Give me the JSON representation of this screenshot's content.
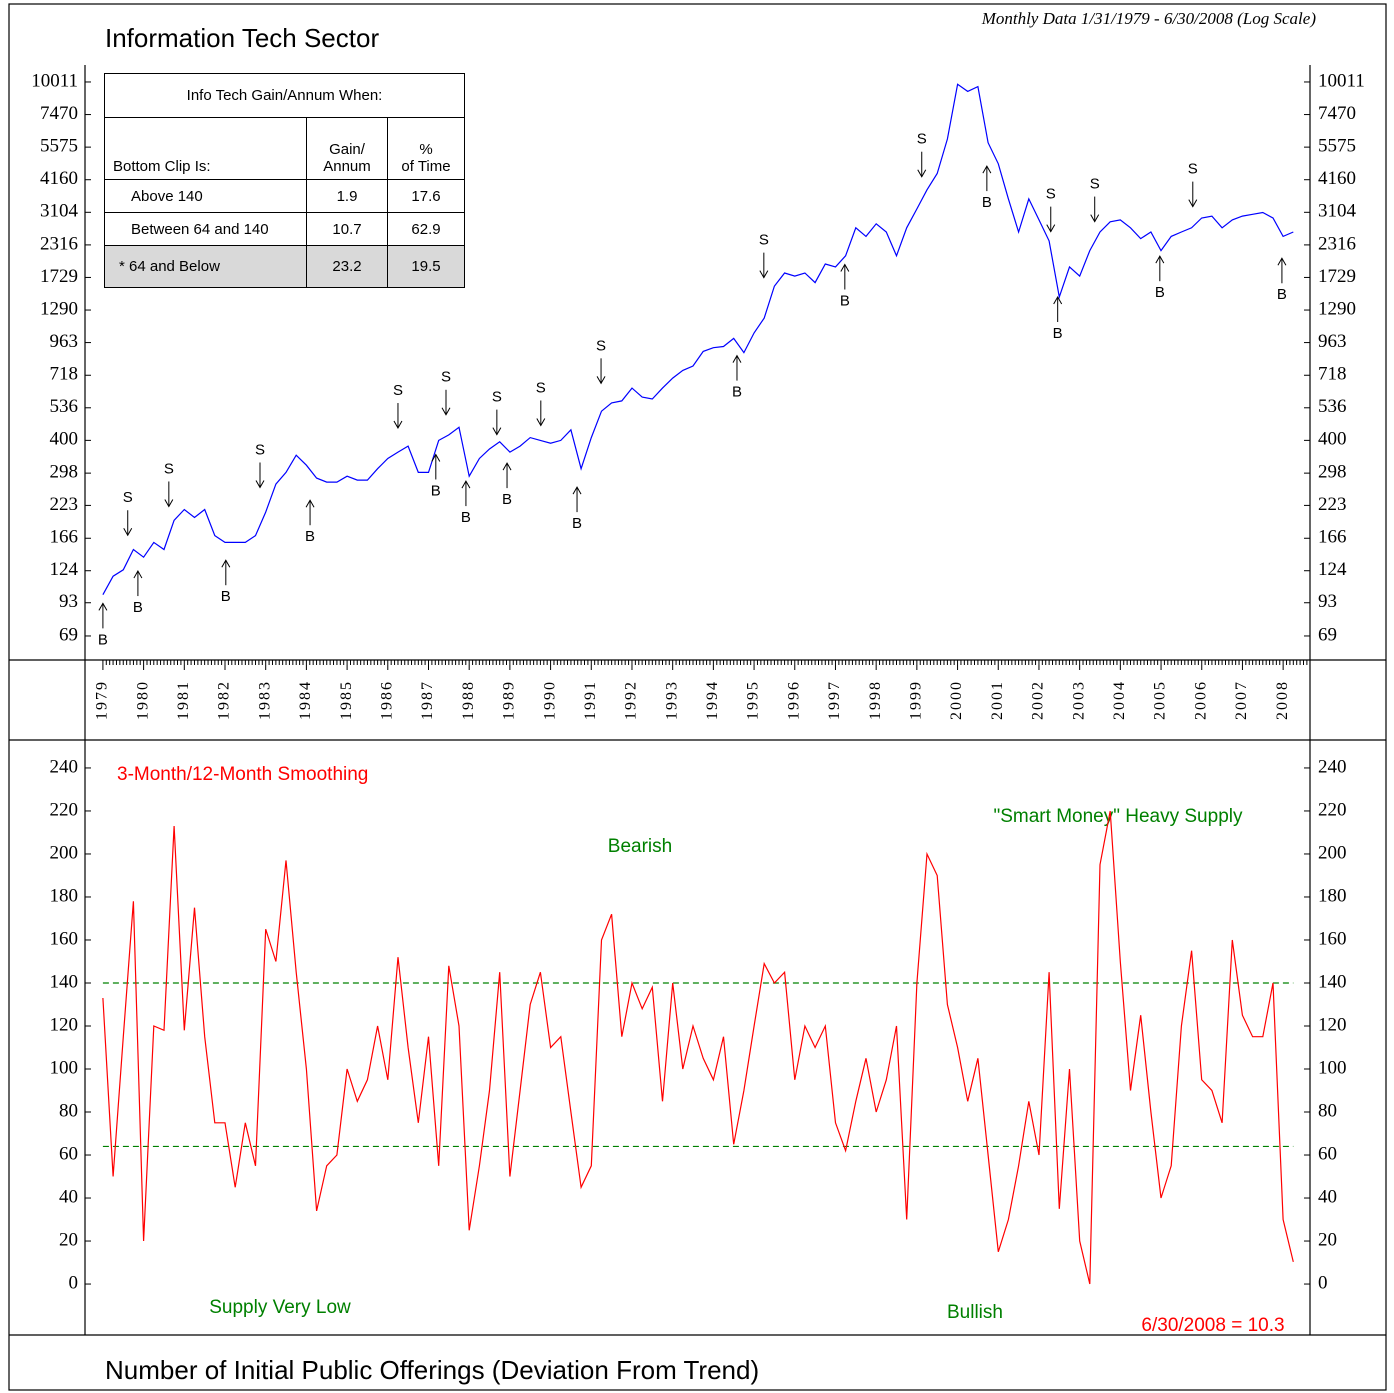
{
  "chart_data": [
    {
      "type": "line",
      "title": "Information Tech Sector",
      "subtitle": "Monthly Data 1/31/1979 - 6/30/2008 (Log Scale)",
      "log_scale": true,
      "color": "#0000ff",
      "x": [
        1979,
        1979.25,
        1979.5,
        1979.75,
        1980,
        1980.25,
        1980.5,
        1980.75,
        1981,
        1981.25,
        1981.5,
        1981.75,
        1982,
        1982.25,
        1982.5,
        1982.75,
        1983,
        1983.25,
        1983.5,
        1983.75,
        1984,
        1984.25,
        1984.5,
        1984.75,
        1985,
        1985.25,
        1985.5,
        1985.75,
        1986,
        1986.25,
        1986.5,
        1986.75,
        1987,
        1987.25,
        1987.5,
        1987.75,
        1988,
        1988.25,
        1988.5,
        1988.75,
        1989,
        1989.25,
        1989.5,
        1989.75,
        1990,
        1990.25,
        1990.5,
        1990.75,
        1991,
        1991.25,
        1991.5,
        1991.75,
        1992,
        1992.25,
        1992.5,
        1992.75,
        1993,
        1993.25,
        1993.5,
        1993.75,
        1994,
        1994.25,
        1994.5,
        1994.75,
        1995,
        1995.25,
        1995.5,
        1995.75,
        1996,
        1996.25,
        1996.5,
        1996.75,
        1997,
        1997.25,
        1997.5,
        1997.75,
        1998,
        1998.25,
        1998.5,
        1998.75,
        1999,
        1999.25,
        1999.5,
        1999.75,
        2000,
        2000.25,
        2000.5,
        2000.75,
        2001,
        2001.25,
        2001.5,
        2001.75,
        2002,
        2002.25,
        2002.5,
        2002.75,
        2003,
        2003.25,
        2003.5,
        2003.75,
        2004,
        2004.25,
        2004.5,
        2004.75,
        2005,
        2005.25,
        2005.5,
        2005.75,
        2006,
        2006.25,
        2006.5,
        2006.75,
        2007,
        2007.25,
        2007.5,
        2007.75,
        2008,
        2008.25
      ],
      "values": [
        100,
        118,
        125,
        150,
        140,
        160,
        150,
        195,
        215,
        200,
        215,
        170,
        160,
        160,
        160,
        170,
        210,
        270,
        300,
        350,
        320,
        285,
        275,
        275,
        290,
        280,
        280,
        310,
        340,
        360,
        380,
        300,
        300,
        400,
        420,
        450,
        290,
        340,
        370,
        395,
        360,
        380,
        410,
        400,
        390,
        400,
        440,
        310,
        410,
        520,
        560,
        570,
        640,
        590,
        580,
        640,
        700,
        750,
        780,
        890,
        920,
        930,
        1000,
        880,
        1050,
        1200,
        1600,
        1800,
        1750,
        1800,
        1650,
        1950,
        1900,
        2100,
        2700,
        2500,
        2800,
        2600,
        2100,
        2700,
        3200,
        3800,
        4400,
        6000,
        9800,
        9200,
        9600,
        5800,
        4800,
        3500,
        2600,
        3500,
        2900,
        2400,
        1450,
        1900,
        1750,
        2200,
        2600,
        2850,
        2900,
        2700,
        2450,
        2600,
        2200,
        2500,
        2600,
        2700,
        2950,
        3000,
        2700,
        2900,
        3000,
        3050,
        3100,
        2950,
        2500,
        2600
      ],
      "xlim": [
        1978.56,
        2008.66
      ],
      "xticks": [
        1979,
        1980,
        1981,
        1982,
        1983,
        1984,
        1985,
        1986,
        1987,
        1988,
        1989,
        1990,
        1991,
        1992,
        1993,
        1994,
        1995,
        1996,
        1997,
        1998,
        1999,
        2000,
        2001,
        2002,
        2003,
        2004,
        2005,
        2006,
        2007,
        2008
      ],
      "ylim": [
        55.6,
        11660
      ],
      "yticks": [
        69,
        93,
        124,
        166,
        223,
        298,
        400,
        536,
        718,
        963,
        1290,
        1729,
        2316,
        3104,
        4160,
        5575,
        7470,
        10011
      ],
      "annotations": [
        {
          "label": "B",
          "x": 1979.0,
          "y": 95
        },
        {
          "label": "B",
          "x": 1979.86,
          "y": 127
        },
        {
          "label": "B",
          "x": 1982.02,
          "y": 140
        },
        {
          "label": "B",
          "x": 1984.09,
          "y": 240
        },
        {
          "label": "B",
          "x": 1987.18,
          "y": 362
        },
        {
          "label": "B",
          "x": 1987.92,
          "y": 285
        },
        {
          "label": "B",
          "x": 1988.93,
          "y": 335
        },
        {
          "label": "B",
          "x": 1990.65,
          "y": 270
        },
        {
          "label": "B",
          "x": 1994.58,
          "y": 880
        },
        {
          "label": "B",
          "x": 1997.23,
          "y": 1995
        },
        {
          "label": "B",
          "x": 2000.72,
          "y": 4830
        },
        {
          "label": "B",
          "x": 2002.46,
          "y": 1490
        },
        {
          "label": "B",
          "x": 2004.97,
          "y": 2150
        },
        {
          "label": "B",
          "x": 2007.97,
          "y": 2110
        },
        {
          "label": "S",
          "x": 1979.61,
          "y": 166
        },
        {
          "label": "S",
          "x": 1980.62,
          "y": 215
        },
        {
          "label": "S",
          "x": 1982.86,
          "y": 255
        },
        {
          "label": "S",
          "x": 1986.25,
          "y": 435
        },
        {
          "label": "S",
          "x": 1987.43,
          "y": 490
        },
        {
          "label": "S",
          "x": 1988.68,
          "y": 410
        },
        {
          "label": "S",
          "x": 1989.76,
          "y": 445
        },
        {
          "label": "S",
          "x": 1991.24,
          "y": 650
        },
        {
          "label": "S",
          "x": 1995.24,
          "y": 1680
        },
        {
          "label": "S",
          "x": 1999.12,
          "y": 4160
        },
        {
          "label": "S",
          "x": 2002.29,
          "y": 2540
        },
        {
          "label": "S",
          "x": 2003.37,
          "y": 2780
        },
        {
          "label": "S",
          "x": 2005.78,
          "y": 3180
        }
      ],
      "table": {
        "title": "Info Tech Gain/Annum When:",
        "columns": [
          [
            "Bottom Clip Is:"
          ],
          [
            "Gain/",
            "Annum"
          ],
          [
            "%",
            "of Time"
          ]
        ],
        "rows": [
          [
            "Above 140",
            1.9,
            17.6
          ],
          [
            "Between 64 and 140",
            10.7,
            62.9
          ],
          [
            "* 64 and Below",
            23.2,
            19.5
          ]
        ]
      }
    },
    {
      "type": "line",
      "title": "Number of Initial Public Offerings (Deviation From Trend)",
      "subtitle": "3-Month/12-Month Smoothing",
      "color": "#ff0000",
      "x": [
        1979,
        1979.25,
        1979.5,
        1979.75,
        1980,
        1980.25,
        1980.5,
        1980.75,
        1981,
        1981.25,
        1981.5,
        1981.75,
        1982,
        1982.25,
        1982.5,
        1982.75,
        1983,
        1983.25,
        1983.5,
        1983.75,
        1984,
        1984.25,
        1984.5,
        1984.75,
        1985,
        1985.25,
        1985.5,
        1985.75,
        1986,
        1986.25,
        1986.5,
        1986.75,
        1987,
        1987.25,
        1987.5,
        1987.75,
        1988,
        1988.25,
        1988.5,
        1988.75,
        1989,
        1989.25,
        1989.5,
        1989.75,
        1990,
        1990.25,
        1990.5,
        1990.75,
        1991,
        1991.25,
        1991.5,
        1991.75,
        1992,
        1992.25,
        1992.5,
        1992.75,
        1993,
        1993.25,
        1993.5,
        1993.75,
        1994,
        1994.25,
        1994.5,
        1994.75,
        1995,
        1995.25,
        1995.5,
        1995.75,
        1996,
        1996.25,
        1996.5,
        1996.75,
        1997,
        1997.25,
        1997.5,
        1997.75,
        1998,
        1998.25,
        1998.5,
        1998.75,
        1999,
        1999.25,
        1999.5,
        1999.75,
        2000,
        2000.25,
        2000.5,
        2000.75,
        2001,
        2001.25,
        2001.5,
        2001.75,
        2002,
        2002.25,
        2002.5,
        2002.75,
        2003,
        2003.25,
        2003.5,
        2003.75,
        2004,
        2004.25,
        2004.5,
        2004.75,
        2005,
        2005.25,
        2005.5,
        2005.75,
        2006,
        2006.25,
        2006.5,
        2006.75,
        2007,
        2007.25,
        2007.5,
        2007.75,
        2008,
        2008.25
      ],
      "values": [
        133,
        50,
        115,
        178,
        20,
        120,
        118,
        213,
        118,
        175,
        115,
        75,
        75,
        45,
        75,
        55,
        165,
        150,
        197,
        145,
        100,
        34,
        55,
        60,
        100,
        85,
        95,
        120,
        95,
        152,
        110,
        75,
        115,
        55,
        148,
        120,
        25,
        55,
        90,
        145,
        50,
        90,
        130,
        145,
        110,
        115,
        80,
        45,
        55,
        160,
        172,
        115,
        140,
        128,
        138,
        85,
        140,
        100,
        120,
        105,
        95,
        115,
        65,
        90,
        120,
        149,
        140,
        145,
        95,
        120,
        110,
        120,
        75,
        62,
        85,
        105,
        80,
        95,
        120,
        30,
        140,
        200,
        190,
        130,
        110,
        85,
        105,
        60,
        15,
        30,
        55,
        85,
        60,
        145,
        35,
        100,
        20,
        0,
        195,
        220,
        150,
        90,
        125,
        80,
        40,
        55,
        120,
        155,
        95,
        90,
        75,
        160,
        125,
        115,
        115,
        140,
        30,
        10.3
      ],
      "xlim": [
        1978.56,
        2008.66
      ],
      "ylim": [
        -23.7,
        253
      ],
      "yticks": [
        0,
        20,
        40,
        60,
        80,
        100,
        120,
        140,
        160,
        180,
        200,
        220,
        240
      ],
      "hlines": [
        140,
        64
      ],
      "hline_color": "#008000",
      "annotations": [
        "Bearish",
        "\"Smart Money\" Heavy Supply",
        "Supply Very Low",
        "Bullish",
        "6/30/2008 = 10.3"
      ]
    }
  ]
}
